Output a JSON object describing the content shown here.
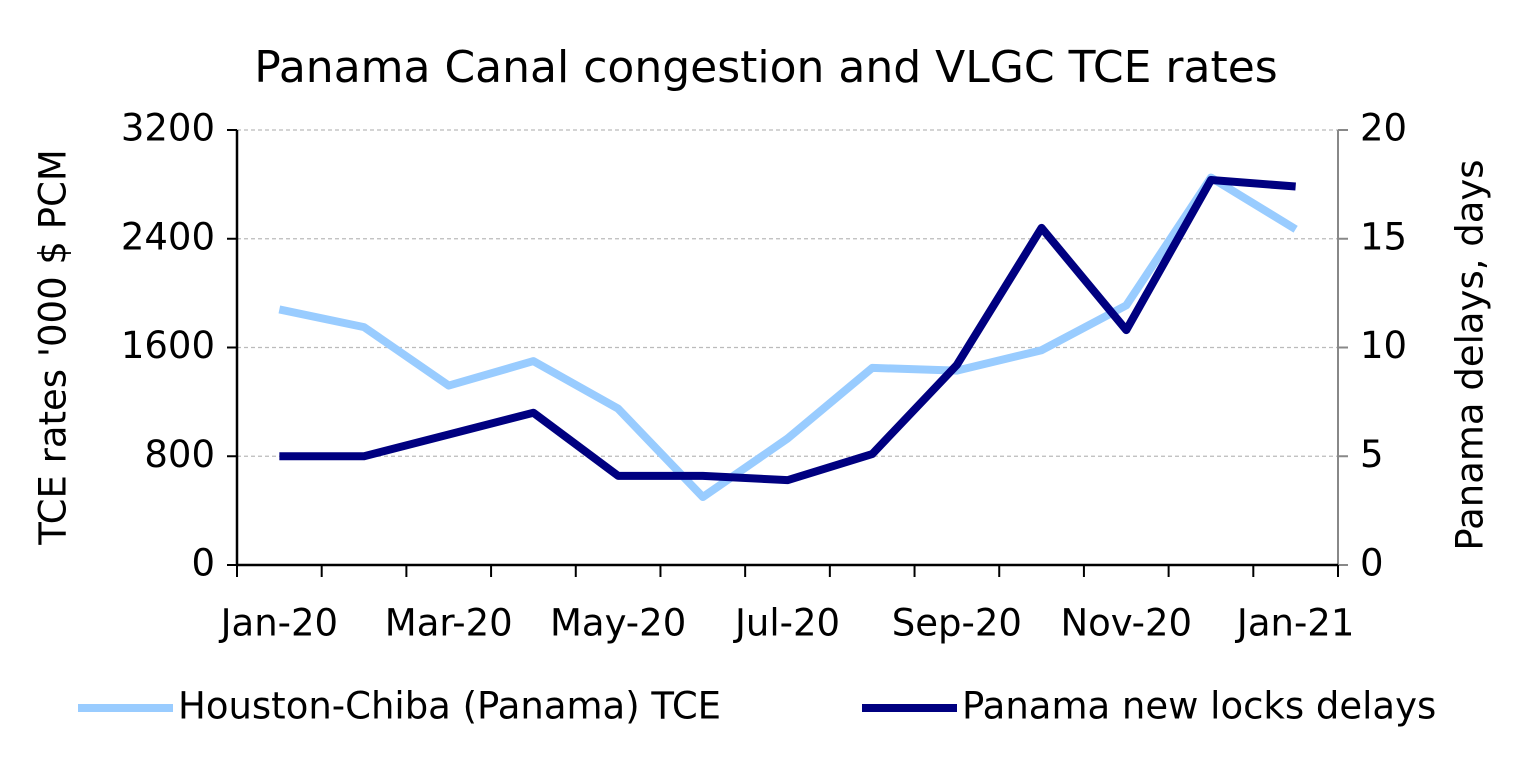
{
  "chart_data": {
    "type": "line",
    "title": "Panama Canal congestion and VLGC TCE rates",
    "categories": [
      "Jan-20",
      null,
      "Mar-20",
      null,
      "May-20",
      null,
      "Jul-20",
      null,
      "Sep-20",
      null,
      "Nov-20",
      null,
      "Jan-21"
    ],
    "series": [
      {
        "name": "Houston-Chiba (Panama) TCE",
        "color": "#99ccff",
        "values": [
          1880,
          1750,
          1320,
          1500,
          1150,
          500,
          930,
          1450,
          1430,
          1580,
          1910,
          2850,
          2470
        ]
      },
      {
        "name": "Panama new locks delays",
        "color": "#000080",
        "axis": "y2",
        "values": [
          5,
          5,
          6,
          7,
          4.1,
          4.1,
          3.9,
          5.1,
          9.2,
          15.5,
          10.8,
          17.7,
          17.4
        ]
      }
    ],
    "ylabel": "TCE rates '000 $ PCM",
    "y2label": "Panama delays, days",
    "ylim": [
      0,
      3200
    ],
    "yticks": [
      0,
      800,
      1600,
      2400,
      3200
    ],
    "y2lim": [
      0,
      20
    ],
    "y2ticks": [
      0,
      5,
      10,
      15,
      20
    ],
    "grid": true,
    "legend": "bottom"
  }
}
